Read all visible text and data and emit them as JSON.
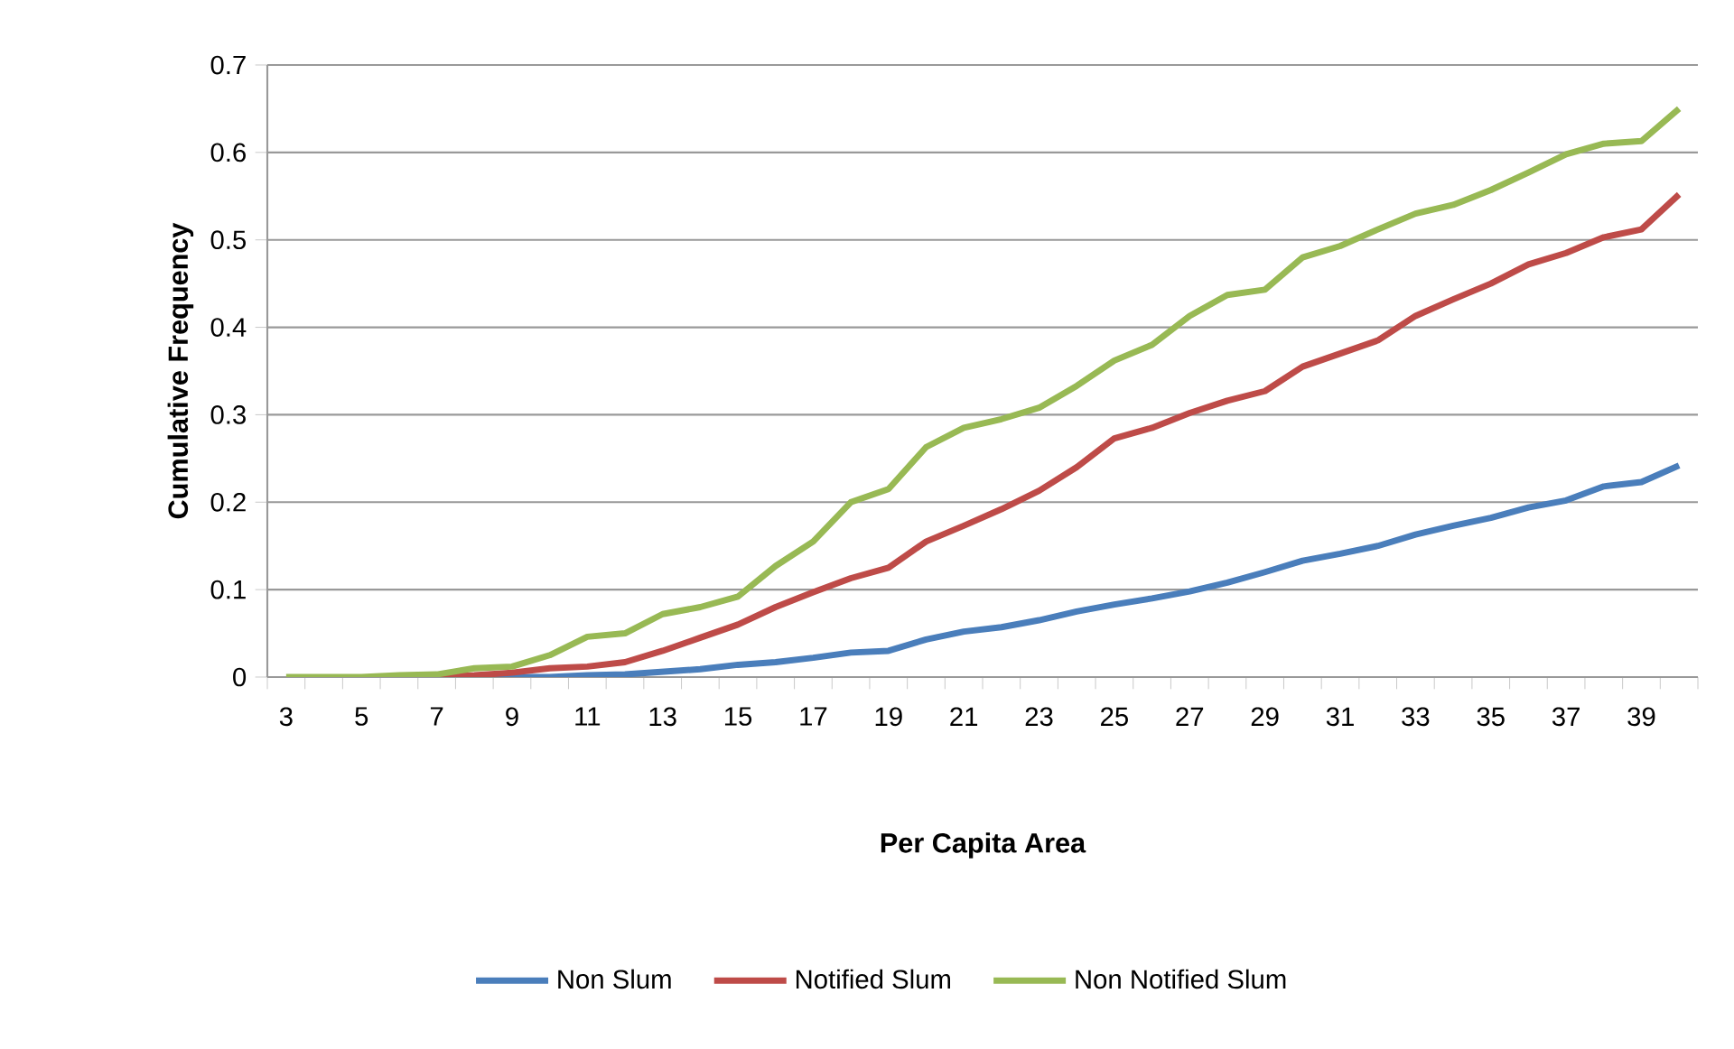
{
  "chart_data": {
    "type": "line",
    "xlabel": "Per Capita Area",
    "ylabel": "Cumulative Frequency",
    "categories": [
      "3",
      null,
      "5",
      null,
      "7",
      null,
      "9",
      null,
      "11",
      null,
      "13",
      null,
      "15",
      null,
      "17",
      null,
      "19",
      null,
      "21",
      null,
      "23",
      null,
      "25",
      null,
      "27",
      null,
      "29",
      null,
      "31",
      null,
      "33",
      null,
      "35",
      null,
      "37",
      null,
      "39",
      null
    ],
    "ylim": [
      0,
      0.7
    ],
    "yticks": [
      0,
      0.1,
      0.2,
      0.3,
      0.4,
      0.5,
      0.6,
      0.7
    ],
    "grid": "y",
    "legend": "bottom",
    "marker": "none",
    "line_style": "solid",
    "series": [
      {
        "name": "Non Slum",
        "color": "#4a7ebb",
        "values": [
          null,
          null,
          null,
          null,
          null,
          0,
          0,
          0,
          0.002,
          0.003,
          0.006,
          0.009,
          0.014,
          0.017,
          0.022,
          0.028,
          0.03,
          0.043,
          0.052,
          0.057,
          0.065,
          0.075,
          0.083,
          0.09,
          0.098,
          0.108,
          0.12,
          0.133,
          0.141,
          0.15,
          0.163,
          0.173,
          0.182,
          0.194,
          0.202,
          0.218,
          0.223,
          0.242
        ]
      },
      {
        "name": "Notified Slum",
        "color": "#be4b48",
        "values": [
          null,
          null,
          null,
          0,
          0,
          0.002,
          0.005,
          0.01,
          0.012,
          0.017,
          0.03,
          0.045,
          0.06,
          0.08,
          0.097,
          0.113,
          0.125,
          0.155,
          0.173,
          0.192,
          0.213,
          0.24,
          0.273,
          0.285,
          0.302,
          0.316,
          0.327,
          0.355,
          0.37,
          0.385,
          0.413,
          0.432,
          0.45,
          0.472,
          0.485,
          0.503,
          0.512,
          0.552
        ]
      },
      {
        "name": "Non Notified Slum",
        "color": "#98b954",
        "values": [
          0,
          0,
          0,
          0.002,
          0.003,
          0.01,
          0.012,
          0.025,
          0.046,
          0.05,
          0.072,
          0.08,
          0.092,
          0.127,
          0.155,
          0.2,
          0.215,
          0.263,
          0.285,
          0.295,
          0.308,
          0.333,
          0.362,
          0.38,
          0.413,
          0.437,
          0.443,
          0.48,
          0.493,
          0.512,
          0.53,
          0.54,
          0.557,
          0.577,
          0.598,
          0.61,
          0.613,
          0.65
        ]
      }
    ]
  }
}
